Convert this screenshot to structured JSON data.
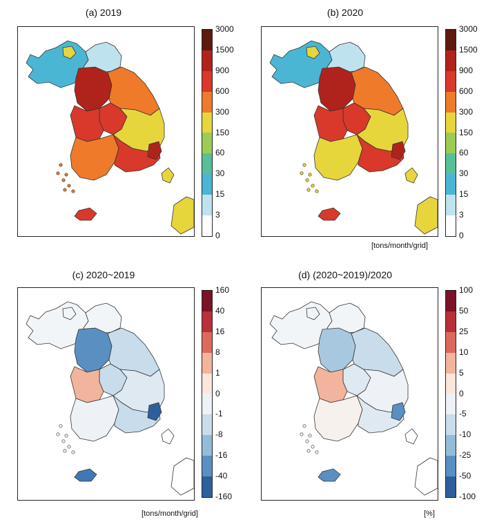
{
  "panels": [
    {
      "title": "(a) 2019",
      "unit": "",
      "ticks": [
        "3000",
        "1500",
        "900",
        "600",
        "300",
        "150",
        "60",
        "30",
        "15",
        "3",
        "0"
      ],
      "colors": [
        "#5c1a10",
        "#b0231c",
        "#d8392a",
        "#ee7a2a",
        "#e7d53c",
        "#9ccc55",
        "#58bf98",
        "#4ab6d4",
        "#bfe2ef",
        "#ffffff"
      ],
      "regions": {
        "nw": "#4ab6d4",
        "ne": "#bfe2ef",
        "nwspot": "#e7d53c",
        "seoul": "#b0231c",
        "gangwon": "#ee7a2a",
        "cc_north": "#d8392a",
        "cc_west": "#d8392a",
        "gb": "#e7d53c",
        "jeolla": "#ee7a2a",
        "gn": "#d8392a",
        "busan": "#b0231c",
        "jeju": "#d8392a",
        "japan": "#e7d53c"
      }
    },
    {
      "title": "(b) 2020",
      "unit": "[tons/month/grid]",
      "ticks": [
        "3000",
        "1500",
        "900",
        "600",
        "300",
        "150",
        "60",
        "30",
        "15",
        "3",
        "0"
      ],
      "colors": [
        "#5c1a10",
        "#b0231c",
        "#d8392a",
        "#ee7a2a",
        "#e7d53c",
        "#9ccc55",
        "#58bf98",
        "#4ab6d4",
        "#bfe2ef",
        "#ffffff"
      ],
      "regions": {
        "nw": "#4ab6d4",
        "ne": "#bfe2ef",
        "nwspot": "#e7d53c",
        "seoul": "#b0231c",
        "gangwon": "#ee7a2a",
        "cc_north": "#d8392a",
        "cc_west": "#d8392a",
        "gb": "#e7d53c",
        "jeolla": "#e7d53c",
        "gn": "#d8392a",
        "busan": "#b0231c",
        "jeju": "#d8392a",
        "japan": "#e7d53c"
      }
    },
    {
      "title": "(c) 2020~2019",
      "unit": "[tons/month/grid]",
      "ticks": [
        "160",
        "40",
        "16",
        "8",
        "1",
        "0",
        "-1",
        "-8",
        "-16",
        "-40",
        "-160"
      ],
      "colors": [
        "#7a1228",
        "#b8303a",
        "#dc6a5c",
        "#f2b49c",
        "#fbe6dc",
        "#eef2f6",
        "#c8dceb",
        "#93bcd9",
        "#5a8fc2",
        "#2d5f9c"
      ],
      "regions": {
        "nw": "#f2f5f8",
        "ne": "#f2f5f8",
        "nwspot": "#f2f5f8",
        "seoul": "#5a8fc2",
        "gangwon": "#c8dceb",
        "cc_north": "#c8dceb",
        "cc_west": "#f2b49c",
        "gb": "#dfe9f2",
        "jeolla": "#eef2f6",
        "gn": "#c8dceb",
        "busan": "#2d5f9c",
        "jeju": "#3f78b4",
        "japan": "#ffffff"
      }
    },
    {
      "title": "(d) (2020~2019)/2020",
      "unit": "[%]",
      "ticks": [
        "100",
        "50",
        "25",
        "10",
        "5",
        "0",
        "-5",
        "-10",
        "-25",
        "-50",
        "-100"
      ],
      "colors": [
        "#7a1228",
        "#b8303a",
        "#dc6a5c",
        "#f2b49c",
        "#fbe6dc",
        "#eef2f6",
        "#c8dceb",
        "#93bcd9",
        "#5a8fc2",
        "#2d5f9c"
      ],
      "regions": {
        "nw": "#f2f5f8",
        "ne": "#f2f5f8",
        "nwspot": "#f2f5f8",
        "seoul": "#a8c8e0",
        "gangwon": "#c8dceb",
        "cc_north": "#dfe9f2",
        "cc_west": "#f2b49c",
        "gb": "#eef2f6",
        "jeolla": "#f7f1ee",
        "gn": "#dfe9f2",
        "busan": "#5a8fc2",
        "jeju": "#5a8fc2",
        "japan": "#ffffff"
      }
    }
  ]
}
